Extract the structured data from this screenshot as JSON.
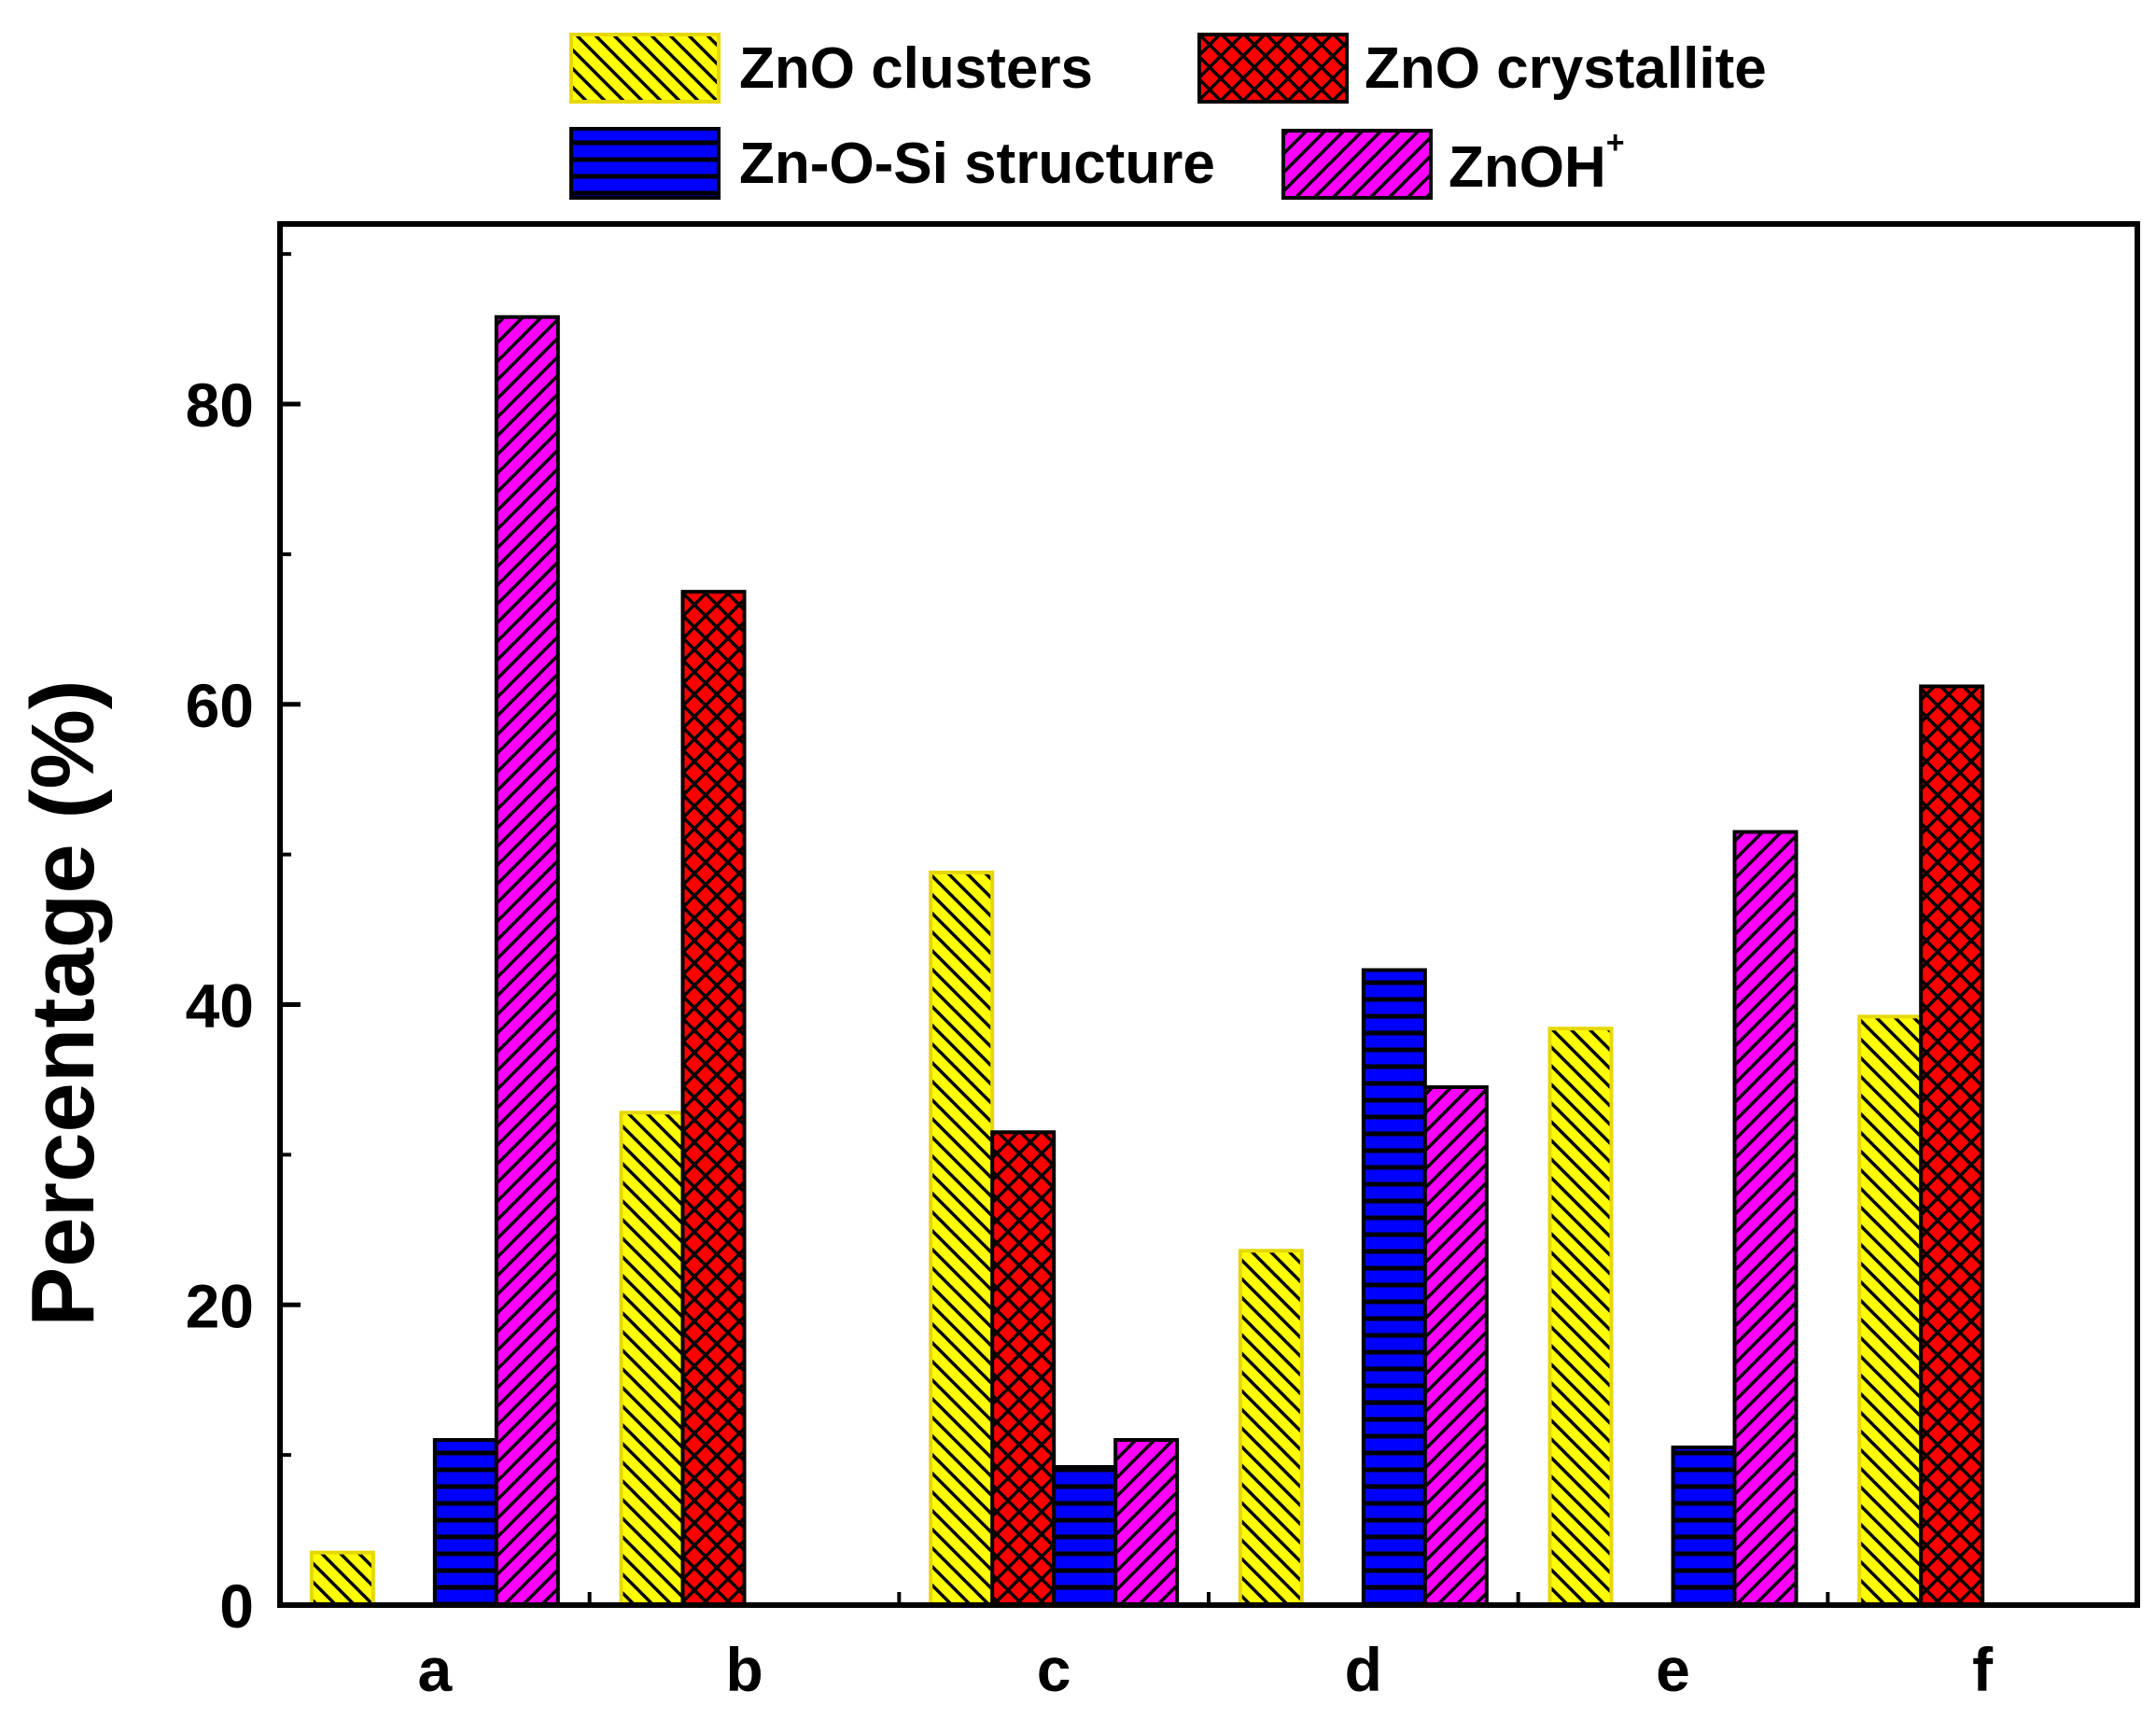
{
  "chart_data": {
    "type": "bar",
    "title": "",
    "xlabel": "",
    "ylabel": "Percentage (%)",
    "ylim": [
      0,
      92
    ],
    "yticks": [
      0,
      20,
      40,
      60,
      80
    ],
    "categories": [
      "a",
      "b",
      "c",
      "d",
      "e",
      "f"
    ],
    "series": [
      {
        "name": "ZnO clusters",
        "color": "#ffff00",
        "edge": "#e6d800",
        "hatch": "backslash",
        "values": [
          3.5,
          32.8,
          48.8,
          23.6,
          38.4,
          39.2
        ]
      },
      {
        "name": "ZnO crystallite",
        "color": "#ff0000",
        "edge": "#000000",
        "hatch": "cross",
        "values": [
          0,
          67.5,
          31.5,
          0,
          0,
          61.2
        ]
      },
      {
        "name": "Zn-O-Si structure",
        "color": "#0000ff",
        "edge": "#000000",
        "hatch": "horizontal",
        "values": [
          11.0,
          0,
          9.2,
          42.3,
          10.5,
          0
        ]
      },
      {
        "name": "ZnOH",
        "superscript": "+",
        "color": "#ff00ff",
        "edge": "#000000",
        "hatch": "slash",
        "values": [
          85.8,
          0,
          11.0,
          34.5,
          51.5,
          0
        ]
      }
    ],
    "legend_position": "top",
    "grid": false
  }
}
